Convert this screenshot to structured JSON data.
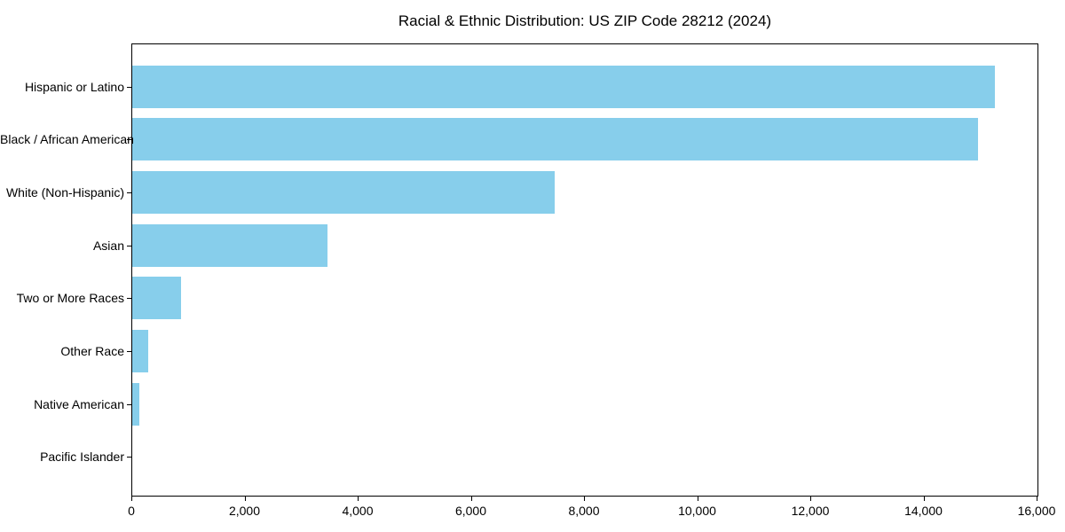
{
  "chart_data": {
    "type": "bar",
    "orientation": "horizontal",
    "title": "Racial & Ethnic Distribution: US ZIP Code 28212 (2024)",
    "categories": [
      "Hispanic or Latino",
      "Black / African American",
      "White (Non-Hispanic)",
      "Asian",
      "Two or More Races",
      "Other Race",
      "Native American",
      "Pacific Islander"
    ],
    "values": [
      15240,
      14950,
      7460,
      3450,
      870,
      280,
      120,
      0
    ],
    "xlabel": "",
    "ylabel": "",
    "xlim": [
      0,
      16000
    ],
    "xticks": [
      0,
      2000,
      4000,
      6000,
      8000,
      10000,
      12000,
      14000,
      16000
    ],
    "xtick_labels": [
      "0",
      "2,000",
      "4,000",
      "6,000",
      "8,000",
      "10,000",
      "12,000",
      "14,000",
      "16,000"
    ],
    "grid": false,
    "legend": null,
    "bar_color": "#87CEEB",
    "axis_color": "#000000",
    "text_color": "#000000",
    "background_color": "#FFFFFF"
  }
}
